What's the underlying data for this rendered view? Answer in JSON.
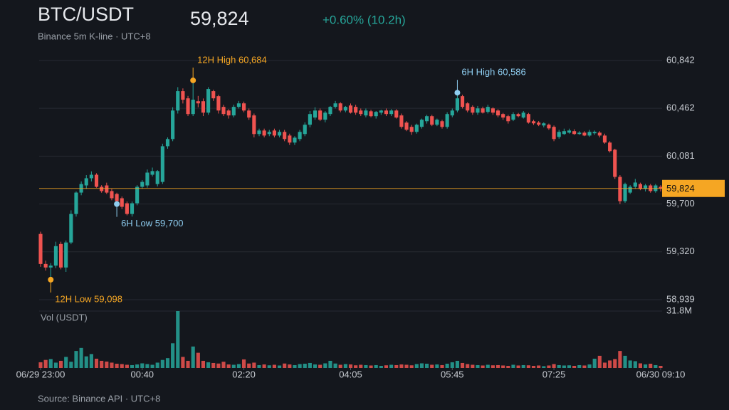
{
  "chart_data": {
    "type": "candlestick",
    "title": "BTC/USDT",
    "subtitle": "Binance 5m K-line · UTC+8",
    "last": {
      "value": 59824,
      "label": "59,824"
    },
    "change": "+0.60% (10.2h)",
    "volume_label": "Vol (USDT)",
    "source": "Source: Binance API · UTC+8",
    "up_color": "#26a69a",
    "down_color": "#ef5350",
    "grid": true,
    "ylim": [
      58939,
      60842
    ],
    "yticks": [
      {
        "value": 60842,
        "label": "60,842"
      },
      {
        "value": 60462,
        "label": "60,462"
      },
      {
        "value": 60081,
        "label": "60,081"
      },
      {
        "value": 59700,
        "label": "59,700"
      },
      {
        "value": 59320,
        "label": "59,320"
      },
      {
        "value": 58939,
        "label": "58,939"
      }
    ],
    "vlim": [
      0,
      31.8
    ],
    "vticks": [
      {
        "value": 31.8,
        "label": "31.8M"
      }
    ],
    "xticks": [
      {
        "value": 0,
        "label": "06/29 23:00"
      },
      {
        "value": 20,
        "label": "00:40"
      },
      {
        "value": 40,
        "label": "02:20"
      },
      {
        "value": 61,
        "label": "04:05"
      },
      {
        "value": 81,
        "label": "05:45"
      },
      {
        "value": 101,
        "label": "07:25"
      },
      {
        "value": 122,
        "label": "06/30 09:10"
      }
    ],
    "annotations": [
      {
        "text": "12H High 60,684",
        "value": 60684,
        "color": "#f5a623"
      },
      {
        "text": "12H Low 59,098",
        "value": 59098,
        "color": "#f5a623"
      },
      {
        "text": "6H High 60,586",
        "value": 60586,
        "color": "#8ecdf0"
      },
      {
        "text": "6H Low 59,700",
        "value": 59700,
        "color": "#8ecdf0"
      }
    ],
    "ohlc": [
      [
        59462,
        59480,
        59200,
        59223
      ],
      [
        59223,
        59250,
        59170,
        59195
      ],
      [
        59195,
        59230,
        59098,
        59210
      ],
      [
        59210,
        59400,
        59190,
        59365
      ],
      [
        59382,
        59400,
        59180,
        59195
      ],
      [
        59195,
        59410,
        59160,
        59394
      ],
      [
        59394,
        59650,
        59380,
        59621
      ],
      [
        59621,
        59800,
        59600,
        59791
      ],
      [
        59791,
        59880,
        59770,
        59859
      ],
      [
        59848,
        59930,
        59820,
        59905
      ],
      [
        59905,
        59960,
        59880,
        59933
      ],
      [
        59933,
        59945,
        59830,
        59837
      ],
      [
        59837,
        59850,
        59790,
        59803
      ],
      [
        59848,
        59870,
        59780,
        59791
      ],
      [
        59803,
        59820,
        59730,
        59746
      ],
      [
        59780,
        59790,
        59700,
        59723
      ],
      [
        59746,
        59760,
        59660,
        59678
      ],
      [
        59706,
        59720,
        59610,
        59621
      ],
      [
        59621,
        59720,
        59600,
        59706
      ],
      [
        59706,
        59850,
        59690,
        59837
      ],
      [
        59837,
        59890,
        59820,
        59876
      ],
      [
        59848,
        59975,
        59830,
        59950
      ],
      [
        59933,
        59990,
        59920,
        59962
      ],
      [
        59859,
        59970,
        59840,
        59962
      ],
      [
        59876,
        60180,
        59860,
        60160
      ],
      [
        60160,
        60230,
        60140,
        60217
      ],
      [
        60217,
        60470,
        60200,
        60444
      ],
      [
        60444,
        60630,
        60420,
        60598
      ],
      [
        60598,
        60620,
        60500,
        60530
      ],
      [
        60541,
        60560,
        60400,
        60416
      ],
      [
        60416,
        60684,
        60400,
        60530
      ],
      [
        60518,
        60560,
        60470,
        60501
      ],
      [
        60518,
        60540,
        60400,
        60427
      ],
      [
        60427,
        60630,
        60410,
        60615
      ],
      [
        60598,
        60610,
        60520,
        60541
      ],
      [
        60558,
        60570,
        60420,
        60444
      ],
      [
        60473,
        60490,
        60400,
        60416
      ],
      [
        60444,
        60455,
        60380,
        60405
      ],
      [
        60405,
        60490,
        60390,
        60473
      ],
      [
        60473,
        60520,
        60460,
        60501
      ],
      [
        60501,
        60515,
        60430,
        60444
      ],
      [
        60444,
        60460,
        60370,
        60388
      ],
      [
        60405,
        60420,
        60230,
        60257
      ],
      [
        60257,
        60300,
        60240,
        60285
      ],
      [
        60285,
        60300,
        60230,
        60245
      ],
      [
        60257,
        60290,
        60240,
        60274
      ],
      [
        60285,
        60300,
        60230,
        60245
      ],
      [
        60245,
        60290,
        60230,
        60274
      ],
      [
        60274,
        60290,
        60200,
        60217
      ],
      [
        60245,
        60260,
        60170,
        60189
      ],
      [
        60189,
        60240,
        60170,
        60228
      ],
      [
        60217,
        60290,
        60200,
        60274
      ],
      [
        60257,
        60350,
        60240,
        60331
      ],
      [
        60331,
        60440,
        60310,
        60416
      ],
      [
        60388,
        60470,
        60370,
        60444
      ],
      [
        60444,
        60460,
        60360,
        60371
      ],
      [
        60371,
        60440,
        60350,
        60427
      ],
      [
        60416,
        60480,
        60400,
        60473
      ],
      [
        60473,
        60520,
        60460,
        60501
      ],
      [
        60501,
        60510,
        60430,
        60444
      ],
      [
        60444,
        60480,
        60430,
        60473
      ],
      [
        60484,
        60500,
        60420,
        60427
      ],
      [
        60473,
        60490,
        60410,
        60427
      ],
      [
        60444,
        60460,
        60400,
        60416
      ],
      [
        60405,
        60460,
        60390,
        60444
      ],
      [
        60438,
        60450,
        60390,
        60399
      ],
      [
        60399,
        60440,
        60380,
        60433
      ],
      [
        60427,
        60450,
        60410,
        60444
      ],
      [
        60444,
        60460,
        60400,
        60416
      ],
      [
        60416,
        60455,
        60400,
        60444
      ],
      [
        60444,
        60455,
        60380,
        60388
      ],
      [
        60405,
        60420,
        60300,
        60314
      ],
      [
        60348,
        60360,
        60280,
        60291
      ],
      [
        60314,
        60330,
        60250,
        60274
      ],
      [
        60274,
        60340,
        60260,
        60331
      ],
      [
        60314,
        60380,
        60300,
        60371
      ],
      [
        60359,
        60410,
        60340,
        60399
      ],
      [
        60399,
        60410,
        60320,
        60331
      ],
      [
        60331,
        60380,
        60320,
        60371
      ],
      [
        60359,
        60370,
        60300,
        60314
      ],
      [
        60314,
        60430,
        60300,
        60416
      ],
      [
        60405,
        60460,
        60390,
        60444
      ],
      [
        60444,
        60586,
        60430,
        60541
      ],
      [
        60558,
        60570,
        60460,
        60473
      ],
      [
        60501,
        60510,
        60430,
        60444
      ],
      [
        60473,
        60485,
        60410,
        60427
      ],
      [
        60427,
        60480,
        60410,
        60461
      ],
      [
        60461,
        60475,
        60420,
        60427
      ],
      [
        60433,
        60490,
        60420,
        60473
      ],
      [
        60461,
        60470,
        60410,
        60427
      ],
      [
        60444,
        60455,
        60390,
        60405
      ],
      [
        60416,
        60425,
        60370,
        60388
      ],
      [
        60399,
        60410,
        60340,
        60359
      ],
      [
        60371,
        60430,
        60360,
        60416
      ],
      [
        60416,
        60425,
        60390,
        60399
      ],
      [
        60388,
        60440,
        60380,
        60427
      ],
      [
        60416,
        60425,
        60340,
        60348
      ],
      [
        60359,
        60370,
        60330,
        60342
      ],
      [
        60348,
        60360,
        60320,
        60331
      ],
      [
        60325,
        60350,
        60310,
        60342
      ],
      [
        60331,
        60340,
        60290,
        60302
      ],
      [
        60314,
        60325,
        60200,
        60217
      ],
      [
        60234,
        60290,
        60220,
        60274
      ],
      [
        60257,
        60300,
        60250,
        60280
      ],
      [
        60268,
        60300,
        60260,
        60285
      ],
      [
        60280,
        60295,
        60250,
        60257
      ],
      [
        60257,
        60280,
        60250,
        60268
      ],
      [
        60268,
        60280,
        60240,
        60245
      ],
      [
        60245,
        60290,
        60235,
        60274
      ],
      [
        60263,
        60285,
        60250,
        60274
      ],
      [
        60268,
        60280,
        60230,
        60245
      ],
      [
        60245,
        60260,
        60180,
        60189
      ],
      [
        60189,
        60200,
        60110,
        60121
      ],
      [
        60132,
        60140,
        59900,
        59916
      ],
      [
        59916,
        59930,
        59700,
        59723
      ],
      [
        59723,
        59870,
        59710,
        59859
      ],
      [
        59791,
        59850,
        59780,
        59837
      ],
      [
        59837,
        59900,
        59820,
        59871
      ],
      [
        59859,
        59870,
        59810,
        59820
      ],
      [
        59820,
        59860,
        59800,
        59848
      ],
      [
        59848,
        59860,
        59790,
        59803
      ],
      [
        59803,
        59860,
        59790,
        59848
      ],
      [
        59837,
        59850,
        59800,
        59824
      ]
    ],
    "volume": [
      3.2,
      4.5,
      5.0,
      3.0,
      4.0,
      6.2,
      3.5,
      9.5,
      11.2,
      6.5,
      7.8,
      5.2,
      4.0,
      3.6,
      3.0,
      2.4,
      2.2,
      1.8,
      1.6,
      2.0,
      2.6,
      2.2,
      1.8,
      3.0,
      4.5,
      5.5,
      13.8,
      31.8,
      6.2,
      4.0,
      12.0,
      8.5,
      4.0,
      3.2,
      2.8,
      2.5,
      3.5,
      2.0,
      1.8,
      2.2,
      4.8,
      2.5,
      3.0,
      1.6,
      2.0,
      1.5,
      1.8,
      1.4,
      2.5,
      2.0,
      1.6,
      2.2,
      2.4,
      2.8,
      2.0,
      1.8,
      2.6,
      4.0,
      2.5,
      1.8,
      2.2,
      2.0,
      1.5,
      1.8,
      1.6,
      1.4,
      1.6,
      1.2,
      1.5,
      1.8,
      1.6,
      2.0,
      1.8,
      1.5,
      2.2,
      2.6,
      2.4,
      1.8,
      2.0,
      1.6,
      2.4,
      3.2,
      4.0,
      2.8,
      2.2,
      1.8,
      1.6,
      1.4,
      1.8,
      1.5,
      1.6,
      1.4,
      1.2,
      1.8,
      1.4,
      1.6,
      1.5,
      1.2,
      1.4,
      1.0,
      1.4,
      2.2,
      1.6,
      1.4,
      1.5,
      1.2,
      1.6,
      1.4,
      2.0,
      5.2,
      6.8,
      3.0,
      4.2,
      5.0,
      9.5,
      6.8,
      4.2,
      3.8,
      2.6,
      2.0,
      2.4,
      1.6,
      1.2
    ]
  }
}
